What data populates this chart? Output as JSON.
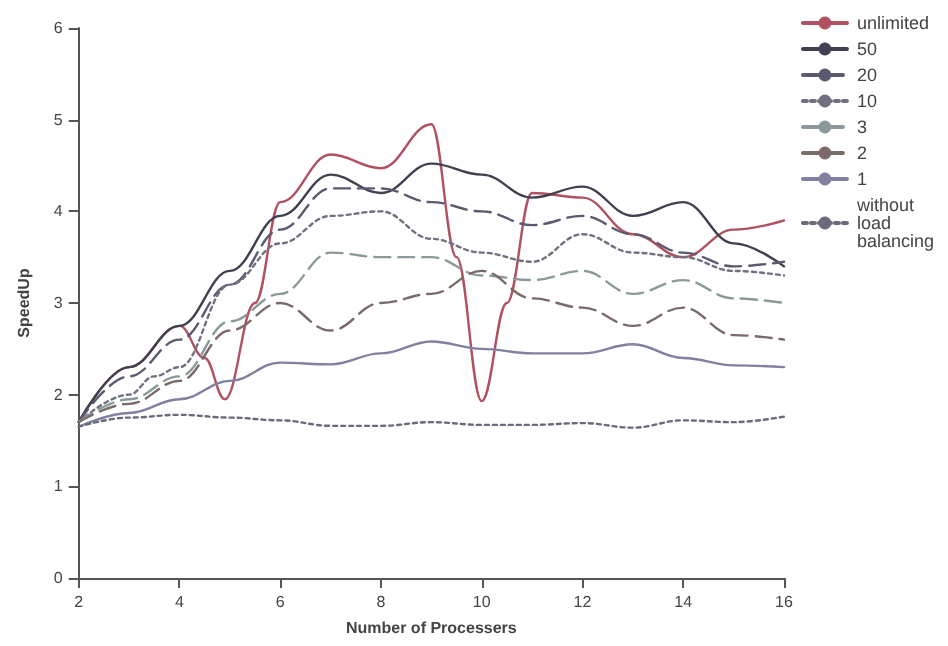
{
  "chart_data": {
    "type": "line",
    "xlabel": "Number of Processers",
    "ylabel": "SpeedUp",
    "xlim": [
      2,
      16
    ],
    "xticks": [
      2,
      4,
      6,
      8,
      10,
      12,
      14,
      16
    ],
    "ylim": [
      0,
      6
    ],
    "yticks": [
      0,
      1,
      2,
      3,
      4,
      5,
      6
    ],
    "grid": false,
    "legend": "top right",
    "marker": "none",
    "series": [
      {
        "name": "unlimited",
        "color": "#b05060",
        "line_style": "solid",
        "x": [
          2,
          3,
          4,
          4.5,
          4.9,
          5.5,
          6,
          7,
          8,
          9,
          9.5,
          10,
          10.5,
          11,
          12,
          13,
          14,
          15,
          16
        ],
        "values": [
          1.7,
          2.3,
          2.75,
          2.4,
          1.95,
          3.0,
          4.1,
          4.62,
          4.47,
          4.95,
          3.5,
          1.93,
          3.0,
          4.2,
          4.15,
          3.75,
          3.5,
          3.8,
          3.9
        ]
      },
      {
        "name": "50",
        "color": "#404050",
        "line_style": "solid",
        "x": [
          2,
          3,
          4,
          5,
          6,
          7,
          8,
          9,
          10,
          11,
          12,
          13,
          14,
          15,
          16
        ],
        "values": [
          1.7,
          2.3,
          2.75,
          3.35,
          3.95,
          4.4,
          4.2,
          4.52,
          4.4,
          4.15,
          4.27,
          3.95,
          4.1,
          3.65,
          3.4
        ]
      },
      {
        "name": "20",
        "color": "#5a5a70",
        "line_style": "dashed",
        "x": [
          2,
          3,
          4,
          5,
          6,
          7,
          8,
          9,
          10,
          11,
          12,
          13,
          14,
          15,
          16
        ],
        "values": [
          1.7,
          2.2,
          2.6,
          3.2,
          3.8,
          4.25,
          4.25,
          4.1,
          4.0,
          3.85,
          3.95,
          3.75,
          3.55,
          3.4,
          3.45
        ]
      },
      {
        "name": "10",
        "color": "#707080",
        "line_style": "dotted",
        "x": [
          2,
          3,
          3.5,
          4,
          5,
          6,
          7,
          8,
          9,
          10,
          11,
          12,
          13,
          14,
          15,
          16
        ],
        "values": [
          1.7,
          2.0,
          2.2,
          2.3,
          3.2,
          3.65,
          3.95,
          4.0,
          3.7,
          3.55,
          3.45,
          3.75,
          3.55,
          3.5,
          3.35,
          3.3
        ]
      },
      {
        "name": "3",
        "color": "#8a9a9a",
        "line_style": "dashed",
        "x": [
          2,
          3,
          4,
          5,
          6,
          7,
          8,
          9,
          10,
          11,
          12,
          13,
          14,
          15,
          16
        ],
        "values": [
          1.7,
          1.95,
          2.2,
          2.8,
          3.1,
          3.55,
          3.5,
          3.5,
          3.3,
          3.25,
          3.35,
          3.1,
          3.25,
          3.05,
          3.0
        ]
      },
      {
        "name": "2",
        "color": "#7a6a6a",
        "line_style": "dashed",
        "x": [
          2,
          3,
          4,
          5,
          6,
          7,
          8,
          9,
          10,
          11,
          12,
          13,
          14,
          15,
          16
        ],
        "values": [
          1.7,
          1.9,
          2.15,
          2.7,
          3.0,
          2.7,
          3.0,
          3.1,
          3.35,
          3.05,
          2.95,
          2.75,
          2.95,
          2.65,
          2.6
        ]
      },
      {
        "name": "1",
        "color": "#8080a0",
        "line_style": "solid",
        "x": [
          2,
          3,
          4,
          5,
          6,
          7,
          8,
          9,
          10,
          11,
          12,
          13,
          14,
          15,
          16
        ],
        "values": [
          1.65,
          1.8,
          1.95,
          2.15,
          2.35,
          2.33,
          2.45,
          2.58,
          2.5,
          2.45,
          2.45,
          2.55,
          2.4,
          2.32,
          2.3
        ]
      },
      {
        "name": "without load balancing",
        "color": "#6a6a7a",
        "line_style": "dotted",
        "x": [
          2,
          3,
          4,
          5,
          6,
          7,
          8,
          9,
          10,
          11,
          12,
          13,
          14,
          15,
          16
        ],
        "values": [
          1.65,
          1.75,
          1.78,
          1.75,
          1.72,
          1.66,
          1.66,
          1.7,
          1.67,
          1.67,
          1.69,
          1.64,
          1.72,
          1.7,
          1.76
        ]
      }
    ]
  }
}
